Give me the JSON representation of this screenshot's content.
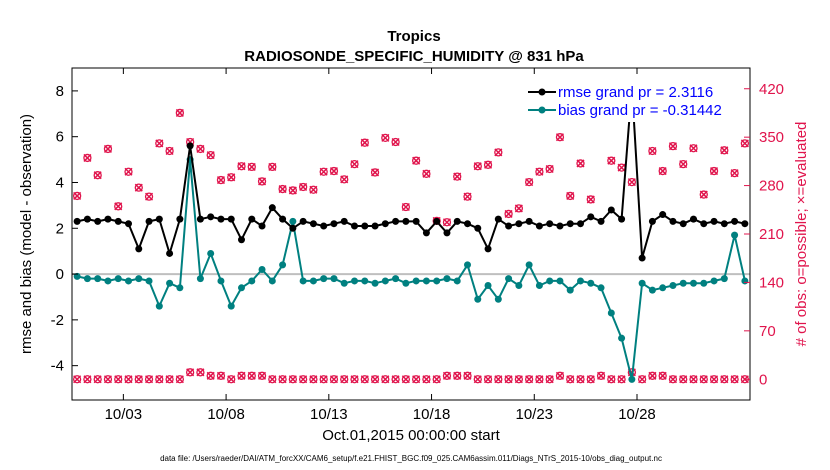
{
  "chart_data": {
    "type": "line",
    "title": "Tropics",
    "subtitle": "RADIOSONDE_SPECIFIC_HUMIDITY @ 831 hPa",
    "xlabel": "Oct.01,2015 00:00:00 start",
    "ylabel_left": "rmse and bias (model - observation)",
    "ylabel_right": "# of obs: o=possible; ×=evaluated",
    "footer": "data file: /Users/raeder/DAI/ATM_forcXX/CAM6_setup/f.e21.FHIST_BGC.f09_025.CAM6assim.011/Diags_NTrS_2015-10/obs_diag_output.nc",
    "xlim": [
      0.5,
      33.5
    ],
    "ylim_left": [
      -5.5,
      9
    ],
    "ylim_right": [
      -30,
      450
    ],
    "x_ticks": [
      3,
      8,
      13,
      18,
      23,
      28
    ],
    "x_tick_labels": [
      "10/03",
      "10/08",
      "10/13",
      "10/18",
      "10/23",
      "10/28"
    ],
    "y_ticks_left": [
      -4,
      -2,
      0,
      2,
      4,
      6,
      8
    ],
    "y_ticks_right": [
      0,
      70,
      140,
      210,
      280,
      350,
      420
    ],
    "legend": [
      {
        "label": "rmse grand pr = 2.3116",
        "color": "#000000"
      },
      {
        "label": "bias grand pr = -0.31442",
        "color": "#008080"
      }
    ],
    "colors": {
      "rmse": "#000000",
      "bias": "#008080",
      "counts": "#e0144c",
      "zero_line": "#bfbfbf",
      "legend_text": "#0000ff"
    },
    "series": [
      {
        "name": "rmse",
        "axis": "left",
        "x": [
          0.75,
          1.25,
          1.75,
          2.25,
          2.75,
          3.25,
          3.75,
          4.25,
          4.75,
          5.25,
          5.75,
          6.25,
          6.75,
          7.25,
          7.75,
          8.25,
          8.75,
          9.25,
          9.75,
          10.25,
          10.75,
          11.25,
          11.75,
          12.25,
          12.75,
          13.25,
          13.75,
          14.25,
          14.75,
          15.25,
          15.75,
          16.25,
          16.75,
          17.25,
          17.75,
          18.25,
          18.75,
          19.25,
          19.75,
          20.25,
          20.75,
          21.25,
          21.75,
          22.25,
          22.75,
          23.25,
          23.75,
          24.25,
          24.75,
          25.25,
          25.75,
          26.25,
          26.75,
          27.25,
          27.75,
          28.25,
          28.75,
          29.25,
          29.75,
          30.25,
          30.75,
          31.25,
          31.75,
          32.25,
          32.75,
          33.25
        ],
        "values": [
          2.3,
          2.4,
          2.3,
          2.4,
          2.3,
          2.2,
          1.1,
          2.3,
          2.4,
          0.9,
          2.4,
          5.6,
          2.4,
          2.5,
          2.4,
          2.4,
          1.5,
          2.4,
          2.1,
          2.9,
          2.4,
          2.0,
          2.3,
          2.2,
          2.1,
          2.2,
          2.3,
          2.1,
          2.1,
          2.1,
          2.2,
          2.3,
          2.3,
          2.3,
          1.8,
          2.3,
          1.8,
          2.3,
          2.2,
          2.0,
          1.1,
          2.4,
          2.1,
          2.2,
          2.3,
          2.1,
          2.2,
          2.1,
          2.2,
          2.2,
          2.5,
          2.3,
          2.8,
          2.4,
          8.2,
          0.7,
          2.3,
          2.6,
          2.3,
          2.2,
          2.4,
          2.2,
          2.3,
          2.2,
          2.3,
          2.2
        ]
      },
      {
        "name": "bias",
        "axis": "left",
        "x": [
          0.75,
          1.25,
          1.75,
          2.25,
          2.75,
          3.25,
          3.75,
          4.25,
          4.75,
          5.25,
          5.75,
          6.25,
          6.75,
          7.25,
          7.75,
          8.25,
          8.75,
          9.25,
          9.75,
          10.25,
          10.75,
          11.25,
          11.75,
          12.25,
          12.75,
          13.25,
          13.75,
          14.25,
          14.75,
          15.25,
          15.75,
          16.25,
          16.75,
          17.25,
          17.75,
          18.25,
          18.75,
          19.25,
          19.75,
          20.25,
          20.75,
          21.25,
          21.75,
          22.25,
          22.75,
          23.25,
          23.75,
          24.25,
          24.75,
          25.25,
          25.75,
          26.25,
          26.75,
          27.25,
          27.75,
          28.25,
          28.75,
          29.25,
          29.75,
          30.25,
          30.75,
          31.25,
          31.75,
          32.25,
          32.75,
          33.25
        ],
        "values": [
          -0.1,
          -0.2,
          -0.2,
          -0.3,
          -0.2,
          -0.3,
          -0.2,
          -0.3,
          -1.4,
          -0.4,
          -0.6,
          5.0,
          -0.2,
          0.9,
          -0.3,
          -1.4,
          -0.6,
          -0.3,
          0.2,
          -0.3,
          0.4,
          2.3,
          -0.3,
          -0.3,
          -0.2,
          -0.2,
          -0.4,
          -0.3,
          -0.3,
          -0.4,
          -0.3,
          -0.2,
          -0.4,
          -0.3,
          -0.3,
          -0.3,
          -0.2,
          -0.3,
          0.4,
          -1.1,
          -0.5,
          -1.1,
          -0.2,
          -0.5,
          0.4,
          -0.5,
          -0.3,
          -0.3,
          -0.7,
          -0.3,
          -0.4,
          -0.6,
          -1.7,
          -2.8,
          -4.6,
          -0.4,
          -0.7,
          -0.6,
          -0.5,
          -0.4,
          -0.4,
          -0.4,
          -0.3,
          -0.2,
          1.7,
          -0.3
        ]
      },
      {
        "name": "possible",
        "axis": "right",
        "x": [
          0.75,
          1.25,
          1.75,
          2.25,
          2.75,
          3.25,
          3.75,
          4.25,
          4.75,
          5.25,
          5.75,
          6.25,
          6.75,
          7.25,
          7.75,
          8.25,
          8.75,
          9.25,
          9.75,
          10.25,
          10.75,
          11.25,
          11.75,
          12.25,
          12.75,
          13.25,
          13.75,
          14.25,
          14.75,
          15.25,
          15.75,
          16.25,
          16.75,
          17.25,
          17.75,
          18.25,
          18.75,
          19.25,
          19.75,
          20.25,
          20.75,
          21.25,
          21.75,
          22.25,
          22.75,
          23.25,
          23.75,
          24.25,
          24.75,
          25.25,
          25.75,
          26.25,
          26.75,
          27.25,
          27.75,
          28.25,
          28.75,
          29.25,
          29.75,
          30.25,
          30.75,
          31.25,
          31.75,
          32.25,
          32.75,
          33.25
        ],
        "values": [
          265,
          320,
          295,
          333,
          250,
          300,
          277,
          264,
          341,
          330,
          385,
          343,
          333,
          324,
          288,
          292,
          308,
          307,
          286,
          307,
          275,
          273,
          278,
          274,
          300,
          301,
          289,
          311,
          342,
          299,
          349,
          343,
          249,
          316,
          297,
          229,
          227,
          293,
          264,
          308,
          310,
          328,
          239,
          247,
          285,
          300,
          304,
          350,
          265,
          312,
          260,
          380,
          316,
          306,
          285,
          378,
          330,
          301,
          337,
          311,
          334,
          267,
          301,
          331,
          298,
          341
        ]
      },
      {
        "name": "evaluated",
        "axis": "right",
        "x": [
          0.75,
          1.25,
          1.75,
          2.25,
          2.75,
          3.25,
          3.75,
          4.25,
          4.75,
          5.25,
          5.75,
          6.25,
          6.75,
          7.25,
          7.75,
          8.25,
          8.75,
          9.25,
          9.75,
          10.25,
          10.75,
          11.25,
          11.75,
          12.25,
          12.75,
          13.25,
          13.75,
          14.25,
          14.75,
          15.25,
          15.75,
          16.25,
          16.75,
          17.25,
          17.75,
          18.25,
          18.75,
          19.25,
          19.75,
          20.25,
          20.75,
          21.25,
          21.75,
          22.25,
          22.75,
          23.25,
          23.75,
          24.25,
          24.75,
          25.25,
          25.75,
          26.25,
          26.75,
          27.25,
          27.75,
          28.25,
          28.75,
          29.25,
          29.75,
          30.25,
          30.75,
          31.25,
          31.75,
          32.25,
          32.75,
          33.25
        ],
        "values": [
          0,
          0,
          0,
          0,
          0,
          0,
          0,
          0,
          0,
          0,
          0,
          10,
          10,
          5,
          5,
          0,
          5,
          5,
          5,
          0,
          0,
          0,
          0,
          0,
          0,
          0,
          0,
          0,
          0,
          0,
          0,
          0,
          0,
          0,
          0,
          0,
          5,
          5,
          5,
          0,
          0,
          0,
          0,
          0,
          0,
          0,
          0,
          5,
          0,
          0,
          0,
          5,
          0,
          0,
          10,
          0,
          5,
          5,
          0,
          0,
          0,
          0,
          0,
          0,
          0,
          0
        ]
      }
    ]
  }
}
